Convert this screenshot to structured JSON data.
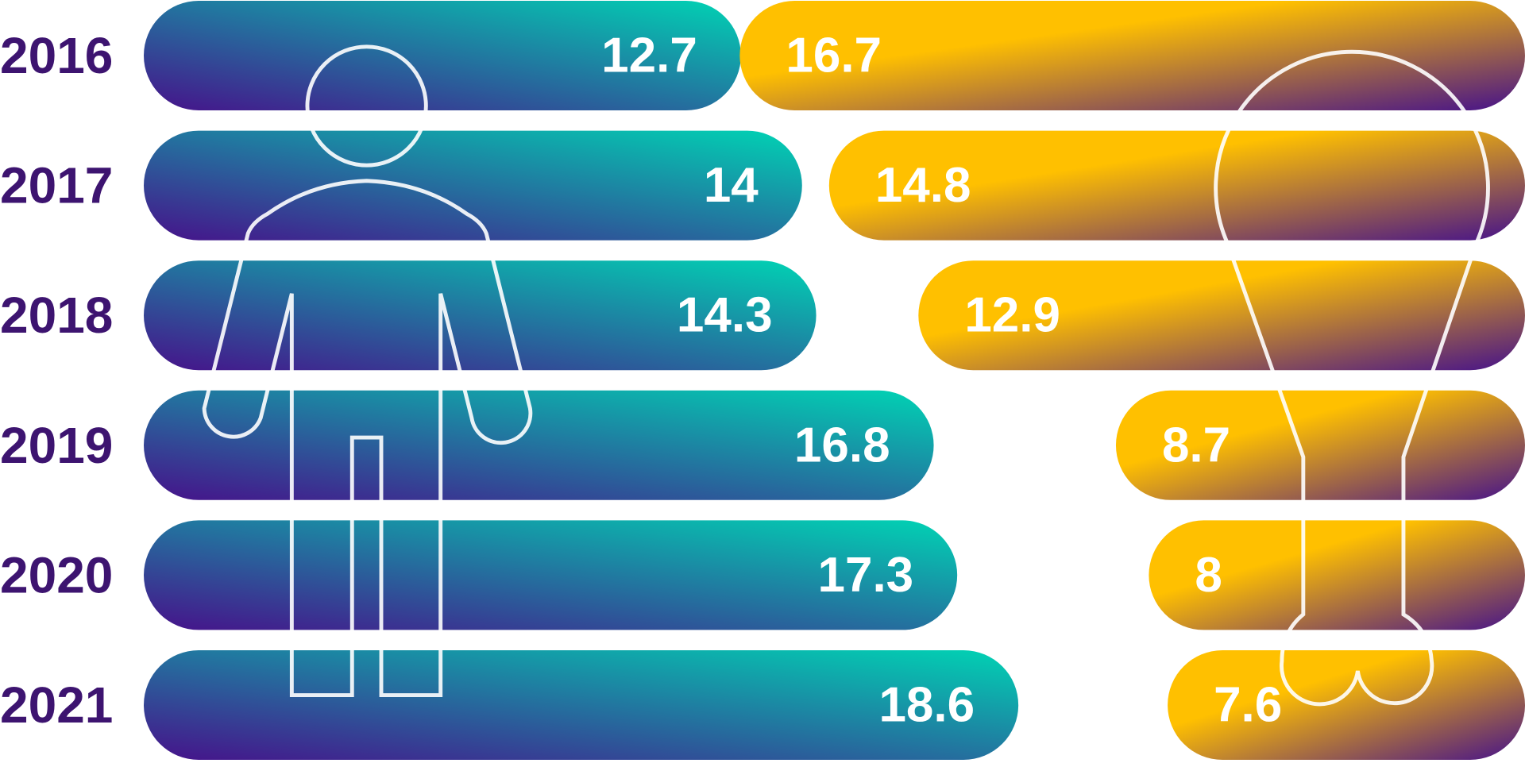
{
  "chart_data": {
    "type": "bar",
    "categories": [
      "2016",
      "2017",
      "2018",
      "2019",
      "2020",
      "2021"
    ],
    "series": [
      {
        "color": "#00d4b4",
        "values": [
          12.7,
          14,
          14.3,
          16.8,
          17.3,
          18.6
        ]
      },
      {
        "color": "#ffc000",
        "values": [
          16.7,
          14.8,
          12.9,
          8.7,
          8,
          7.6
        ]
      }
    ]
  }
}
